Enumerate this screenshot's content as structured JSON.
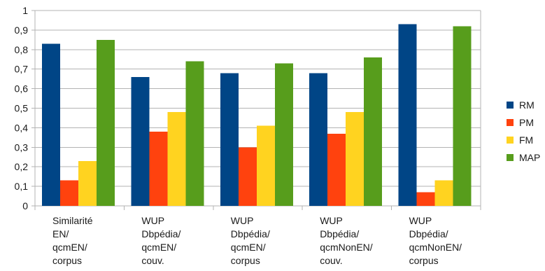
{
  "chart_data": {
    "type": "bar",
    "categories": [
      [
        "Similarité",
        "EN/",
        "qcmEN/",
        "corpus"
      ],
      [
        "WUP",
        "Dbpédia/",
        "qcmEN/",
        "couv."
      ],
      [
        "WUP",
        "Dbpédia/",
        "qcmEN/",
        "corpus"
      ],
      [
        "WUP",
        "Dbpédia/",
        "qcmNonEN/",
        "couv."
      ],
      [
        "WUP",
        "Dbpédia/",
        "qcmNonEN/",
        "corpus"
      ]
    ],
    "series": [
      {
        "name": "RM",
        "color": "#004586",
        "values": [
          0.83,
          0.66,
          0.68,
          0.68,
          0.93
        ]
      },
      {
        "name": "PM",
        "color": "#ff420e",
        "values": [
          0.13,
          0.38,
          0.3,
          0.37,
          0.07
        ]
      },
      {
        "name": "FM",
        "color": "#ffd320",
        "values": [
          0.23,
          0.48,
          0.41,
          0.48,
          0.13
        ]
      },
      {
        "name": "MAP",
        "color": "#579d1c",
        "values": [
          0.85,
          0.74,
          0.73,
          0.76,
          0.92
        ]
      }
    ],
    "yticks": [
      "0",
      "0,1",
      "0,2",
      "0,3",
      "0,4",
      "0,5",
      "0,6",
      "0,7",
      "0,8",
      "0,9",
      "1"
    ],
    "ylim": [
      0,
      1
    ],
    "grid": true,
    "legend_position": "right",
    "title": "",
    "xlabel": "",
    "ylabel": ""
  }
}
